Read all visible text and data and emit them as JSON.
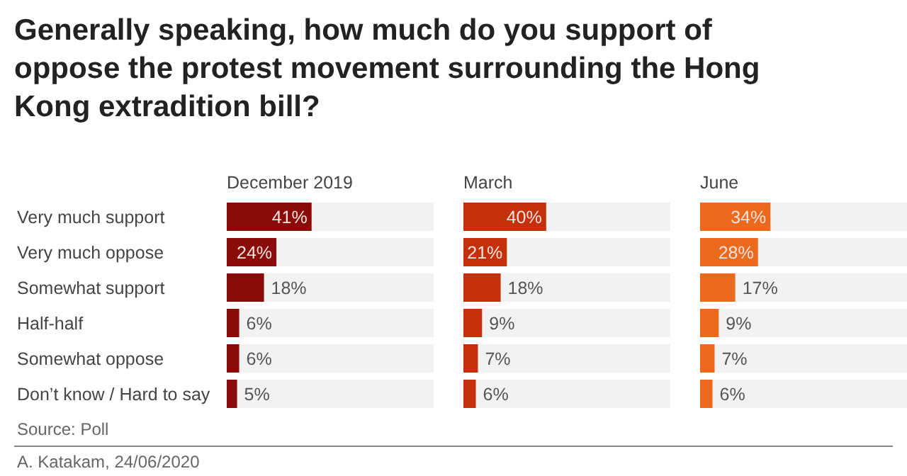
{
  "chart_data": [
    {
      "type": "bar",
      "orientation": "horizontal",
      "title": "Generally speaking, how much do you support of oppose the protest movement surrounding the Hong Kong extradition bill?",
      "subtitle": "December 2019",
      "categories": [
        "Very much support",
        "Very much oppose",
        "Somewhat support",
        "Half-half",
        "Somewhat oppose",
        "Don’t know / Hard to say"
      ],
      "color": "#8b0a0a",
      "values": [
        41,
        24,
        18,
        6,
        6,
        5
      ],
      "value_labels": [
        "41%",
        "24%",
        "18%",
        "6%",
        "6%",
        "5%"
      ],
      "xlim": [
        0,
        100
      ],
      "tick_labels": "y",
      "annotations": [
        "Source: Poll",
        "A. Katakam, 24/06/2020"
      ]
    },
    {
      "type": "bar",
      "orientation": "horizontal",
      "title": "March",
      "categories": [
        null,
        null,
        null,
        null,
        null,
        null
      ],
      "color": "#c4300c",
      "values": [
        40,
        21,
        18,
        9,
        7,
        6
      ],
      "value_labels": [
        "40%",
        "21%",
        "18%",
        "9%",
        "7%",
        "6%"
      ],
      "xlim": [
        0,
        100
      ],
      "tick_labels": false
    },
    {
      "type": "bar",
      "orientation": "horizontal",
      "title": "June",
      "categories": [
        null,
        null,
        null,
        null,
        null,
        null
      ],
      "color": "#ec6a1e",
      "values": [
        34,
        28,
        17,
        9,
        7,
        6
      ],
      "value_labels": [
        "34%",
        "28%",
        "17%",
        "9%",
        "7%",
        "6%"
      ],
      "xlim": [
        0,
        100
      ],
      "tick_labels": false
    }
  ]
}
